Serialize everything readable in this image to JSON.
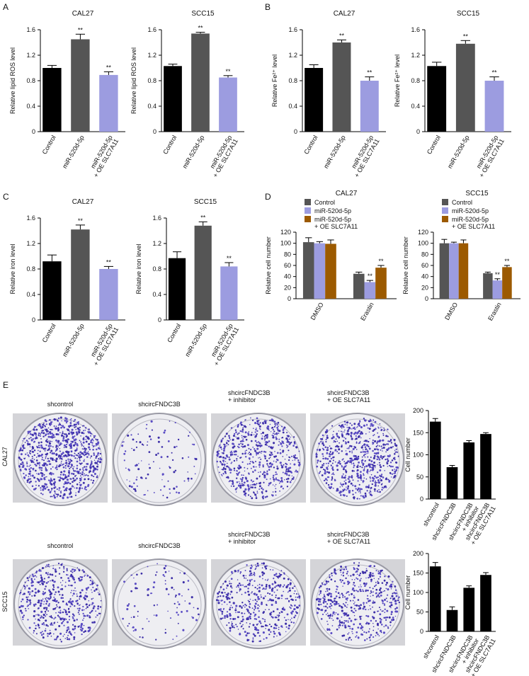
{
  "panel_labels": [
    "A",
    "B",
    "C",
    "D",
    "E"
  ],
  "colony": {
    "rows": [
      {
        "label": "CAL27",
        "columns": [
          "shcontrol",
          "shcircFNDC3B",
          "shcircFNDC3B\n+ inhibitor",
          "shcircFNDC3B\n+ OE SLC7A11"
        ]
      },
      {
        "label": "SCC15",
        "columns": [
          "shcontrol",
          "shcircFNDC3B",
          "shcircFNDC3B\n+ inhibitor",
          "shcircFNDC3B\n+ OE SLC7A11"
        ]
      }
    ]
  },
  "chart_data": [
    {
      "type": "bar",
      "title": "CAL27",
      "y_label": "Relative lipid ROS level",
      "categories": [
        "Control",
        "miR-520d-5p",
        "miR-520d-5p\n+ OE SLC7A11"
      ],
      "values": [
        1.0,
        1.45,
        0.89
      ],
      "errors": [
        0.04,
        0.08,
        0.05
      ],
      "annotations": [
        null,
        "**",
        "**"
      ],
      "colors": [
        "#000000",
        "#555555",
        "#9c9ce0"
      ],
      "ylim": [
        0,
        1.6
      ],
      "yticks": [
        0,
        0.4,
        0.8,
        1.2,
        1.6
      ]
    },
    {
      "type": "bar",
      "title": "SCC15",
      "y_label": "Relative lipid ROS level",
      "categories": [
        "Control",
        "miR-520d-5p",
        "miR-520d-5p\n+ OE SLC7A11"
      ],
      "values": [
        1.03,
        1.54,
        0.85
      ],
      "errors": [
        0.03,
        0.02,
        0.03
      ],
      "annotations": [
        null,
        "**",
        "**"
      ],
      "colors": [
        "#000000",
        "#555555",
        "#9c9ce0"
      ],
      "ylim": [
        0,
        1.6
      ],
      "yticks": [
        0,
        0.4,
        0.8,
        1.2,
        1.6
      ]
    },
    {
      "type": "bar",
      "title": "CAL27",
      "y_label": "Relative Fe²⁺ level",
      "categories": [
        "Control",
        "miR-520d-5p",
        "miR-520d-5p\n+ OE SLC7A11"
      ],
      "values": [
        1.0,
        1.4,
        0.8
      ],
      "errors": [
        0.05,
        0.04,
        0.06
      ],
      "annotations": [
        null,
        "**",
        "**"
      ],
      "colors": [
        "#000000",
        "#555555",
        "#9c9ce0"
      ],
      "ylim": [
        0,
        1.6
      ],
      "yticks": [
        0,
        0.4,
        0.8,
        1.2,
        1.6
      ]
    },
    {
      "type": "bar",
      "title": "SCC15",
      "y_label": "Relative Fe²⁺ level",
      "categories": [
        "Control",
        "miR-520d-5p",
        "miR-520d-5p\n+ OE SLC7A11"
      ],
      "values": [
        1.03,
        1.38,
        0.8
      ],
      "errors": [
        0.06,
        0.05,
        0.06
      ],
      "annotations": [
        null,
        "**",
        "**"
      ],
      "colors": [
        "#000000",
        "#555555",
        "#9c9ce0"
      ],
      "ylim": [
        0,
        1.6
      ],
      "yticks": [
        0,
        0.4,
        0.8,
        1.2,
        1.6
      ]
    },
    {
      "type": "bar",
      "title": "CAL27",
      "y_label": "Relative iron level",
      "categories": [
        "Control",
        "miR-520d-5p",
        "miR-520d-5p\n+ OE SLC7A11"
      ],
      "values": [
        0.92,
        1.42,
        0.8
      ],
      "errors": [
        0.1,
        0.07,
        0.04
      ],
      "annotations": [
        null,
        "**",
        "**"
      ],
      "colors": [
        "#000000",
        "#555555",
        "#9c9ce0"
      ],
      "ylim": [
        0,
        1.6
      ],
      "yticks": [
        0,
        0.4,
        0.8,
        1.2,
        1.6
      ]
    },
    {
      "type": "bar",
      "title": "SCC15",
      "y_label": "Relative iron level",
      "categories": [
        "Control",
        "miR-520d-5p",
        "miR-520d-5p\n+ OE SLC7A11"
      ],
      "values": [
        0.97,
        1.48,
        0.84
      ],
      "errors": [
        0.1,
        0.06,
        0.06
      ],
      "annotations": [
        null,
        "**",
        "**"
      ],
      "colors": [
        "#000000",
        "#555555",
        "#9c9ce0"
      ],
      "ylim": [
        0,
        1.6
      ],
      "yticks": [
        0,
        0.4,
        0.8,
        1.2,
        1.6
      ]
    },
    {
      "type": "grouped_bar",
      "title": "CAL27",
      "y_label": "Relative cell number",
      "categories": [
        "DMSO",
        "Erastin"
      ],
      "series": [
        {
          "name": "Control",
          "color": "#555555",
          "values": [
            102,
            45
          ],
          "errors": [
            8,
            3
          ],
          "annotations": [
            null,
            null
          ]
        },
        {
          "name": "miR-520d-5p",
          "color": "#9c9ce0",
          "values": [
            100,
            30
          ],
          "errors": [
            3,
            3
          ],
          "annotations": [
            null,
            "**"
          ]
        },
        {
          "name": "miR-520d-5p\n+ OE SLC7A11",
          "color": "#9c5a00",
          "values": [
            99,
            56
          ],
          "errors": [
            7,
            4
          ],
          "annotations": [
            null,
            "**"
          ]
        }
      ],
      "ylim": [
        0,
        120
      ],
      "yticks": [
        0,
        20,
        40,
        60,
        80,
        100,
        120
      ]
    },
    {
      "type": "grouped_bar",
      "title": "SCC15",
      "y_label": "Relative cell number",
      "categories": [
        "DMSO",
        "Erastin"
      ],
      "series": [
        {
          "name": "Control",
          "color": "#555555",
          "values": [
            100,
            46
          ],
          "errors": [
            7,
            2
          ],
          "annotations": [
            null,
            null
          ]
        },
        {
          "name": "miR-520d-5p",
          "color": "#9c9ce0",
          "values": [
            100,
            33
          ],
          "errors": [
            2,
            3
          ],
          "annotations": [
            null,
            "**"
          ]
        },
        {
          "name": "miR-520d-5p\n+ OE SLC7A11",
          "color": "#9c5a00",
          "values": [
            100,
            57
          ],
          "errors": [
            6,
            3
          ],
          "annotations": [
            null,
            "**"
          ]
        }
      ],
      "ylim": [
        0,
        120
      ],
      "yticks": [
        0,
        20,
        40,
        60,
        80,
        100,
        120
      ]
    },
    {
      "type": "bar",
      "y_label": "Cell number",
      "categories": [
        "shcontrol",
        "shcircFNDC3B",
        "shcircFNDC3B\n+ inhibitor",
        "shcircFNDC3B\n+ OE SLC7A11"
      ],
      "values": [
        175,
        72,
        128,
        147
      ],
      "errors": [
        7,
        4,
        4,
        3
      ],
      "colors": [
        "#000000",
        "#000000",
        "#000000",
        "#000000"
      ],
      "ylim": [
        0,
        200
      ],
      "yticks": [
        0,
        50,
        100,
        150,
        200
      ]
    },
    {
      "type": "bar",
      "y_label": "Cell number",
      "categories": [
        "shcontrol",
        "shcircFNDC3B",
        "shcircFNDC3B\n+ inhibitor",
        "shcircFNDC3B\n+ OE SLC7A11"
      ],
      "values": [
        167,
        55,
        112,
        145
      ],
      "errors": [
        10,
        8,
        5,
        6
      ],
      "colors": [
        "#000000",
        "#000000",
        "#000000",
        "#000000"
      ],
      "ylim": [
        0,
        200
      ],
      "yticks": [
        0,
        50,
        100,
        150,
        200
      ]
    }
  ]
}
